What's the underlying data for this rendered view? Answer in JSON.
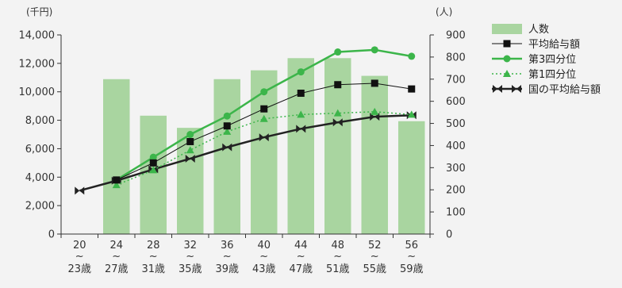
{
  "chart_data": {
    "type": "bar+line",
    "left_unit": "(千円)",
    "right_unit": "(人)",
    "left_ylim": [
      0,
      14000
    ],
    "right_ylim": [
      0,
      900
    ],
    "left_ticks": [
      "0",
      "2,000",
      "4,000",
      "6,000",
      "8,000",
      "10,000",
      "12,000",
      "14,000"
    ],
    "right_ticks": [
      "0",
      "100",
      "200",
      "300",
      "400",
      "500",
      "600",
      "700",
      "800",
      "900"
    ],
    "categories": [
      {
        "top": "20",
        "sep": "~",
        "bottom": "23歳"
      },
      {
        "top": "24",
        "sep": "~",
        "bottom": "27歳"
      },
      {
        "top": "28",
        "sep": "~",
        "bottom": "31歳"
      },
      {
        "top": "32",
        "sep": "~",
        "bottom": "35歳"
      },
      {
        "top": "36",
        "sep": "~",
        "bottom": "39歳"
      },
      {
        "top": "40",
        "sep": "~",
        "bottom": "43歳"
      },
      {
        "top": "44",
        "sep": "~",
        "bottom": "47歳"
      },
      {
        "top": "48",
        "sep": "~",
        "bottom": "51歳"
      },
      {
        "top": "52",
        "sep": "~",
        "bottom": "55歳"
      },
      {
        "top": "56",
        "sep": "~",
        "bottom": "59歳"
      }
    ],
    "bars": {
      "name": "人数",
      "axis": "right",
      "color": "#a9d5a0",
      "values": [
        null,
        700,
        535,
        480,
        700,
        740,
        795,
        795,
        715,
        510
      ]
    },
    "series": [
      {
        "name": "平均給与額",
        "axis": "left",
        "color": "#111111",
        "marker": "square",
        "style": "solid",
        "width": 1,
        "values": [
          null,
          3800,
          5000,
          6500,
          7600,
          8800,
          9900,
          10500,
          10600,
          10200
        ]
      },
      {
        "name": "第3四分位",
        "axis": "left",
        "color": "#3cb54a",
        "marker": "circle",
        "style": "solid",
        "width": 2.5,
        "values": [
          null,
          3800,
          5400,
          7000,
          8300,
          10000,
          11400,
          12800,
          12950,
          12500
        ]
      },
      {
        "name": "第1四分位",
        "axis": "left",
        "color": "#3cb54a",
        "marker": "triangle",
        "style": "dotted",
        "width": 1.5,
        "values": [
          null,
          3450,
          4500,
          5900,
          7200,
          8100,
          8400,
          8500,
          8600,
          8400
        ]
      },
      {
        "name": "国の平均給与額",
        "axis": "left",
        "color": "#222222",
        "marker": "bowtie",
        "style": "solid",
        "width": 2.5,
        "values": [
          3050,
          3750,
          4550,
          5300,
          6100,
          6800,
          7400,
          7850,
          8250,
          8350
        ]
      }
    ],
    "legend_position": "top-right",
    "grid": false
  }
}
